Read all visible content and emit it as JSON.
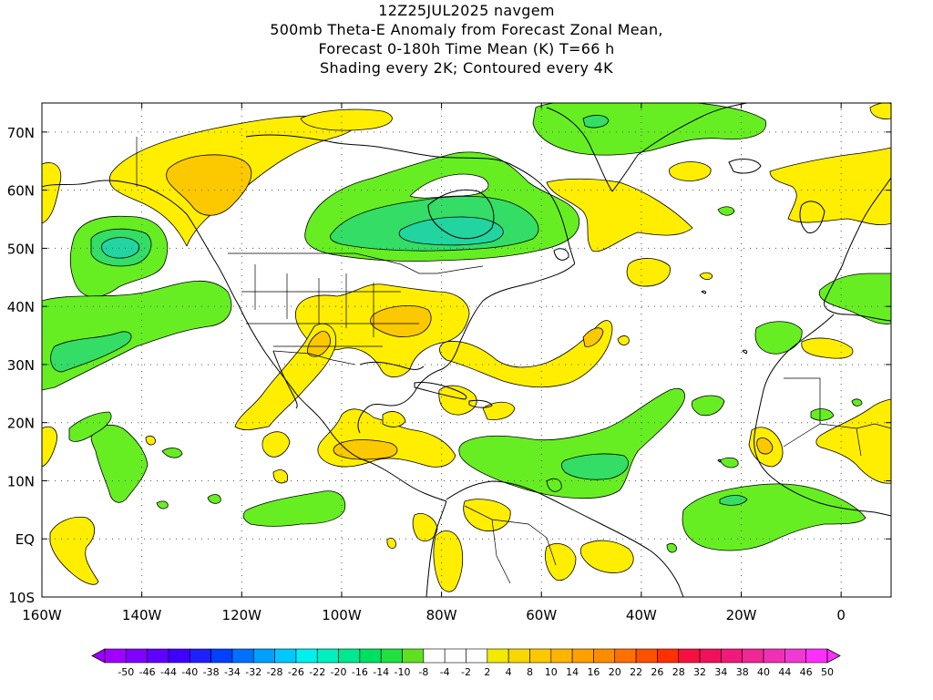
{
  "title": {
    "line1": "12Z25JUL2025 navgem",
    "line2": "500mb Theta-E Anomaly from Forecast Zonal Mean,",
    "line3": "Forecast 0-180h Time Mean (K) T=66 h",
    "line4": "Shading every 2K; Contoured every 4K"
  },
  "map": {
    "lon_range": [
      -160,
      10
    ],
    "lat_range": [
      -10,
      75
    ],
    "lon_ticks": [
      "160W",
      "140W",
      "120W",
      "100W",
      "80W",
      "60W",
      "40W",
      "20W",
      "0"
    ],
    "lat_ticks": [
      "70N",
      "60N",
      "50N",
      "40N",
      "30N",
      "20N",
      "10N",
      "EQ",
      "10S"
    ],
    "grid": "dotted"
  },
  "colorbar": {
    "labels": [
      "-50",
      "-46",
      "-44",
      "-40",
      "-38",
      "-34",
      "-32",
      "-28",
      "-26",
      "-22",
      "-20",
      "-16",
      "-14",
      "-10",
      "-8",
      "-4",
      "-2",
      "2",
      "4",
      "8",
      "10",
      "14",
      "16",
      "20",
      "22",
      "26",
      "28",
      "32",
      "34",
      "38",
      "40",
      "44",
      "46",
      "50"
    ],
    "colors": [
      "#a000ff",
      "#8000ff",
      "#6000ff",
      "#4000ff",
      "#2020ff",
      "#0040ff",
      "#0070ff",
      "#00a0ff",
      "#00c8ff",
      "#00f0f0",
      "#00f0c0",
      "#00e890",
      "#00e060",
      "#20e040",
      "#60e020",
      "#ffffff",
      "#ffffff",
      "#ffffff",
      "#f2ea00",
      "#f8d800",
      "#fcc800",
      "#ffb400",
      "#ffa000",
      "#ff8c00",
      "#ff7000",
      "#ff5000",
      "#ff3000",
      "#f51040",
      "#f0105c",
      "#f01a7a",
      "#f02896",
      "#f030b4",
      "#f038d2",
      "#ff30ff"
    ]
  },
  "colors": {
    "anomaly_pos_light": "#ffee00",
    "anomaly_pos_mid": "#fcc800",
    "anomaly_pos_strong": "#ffaa00",
    "anomaly_neg_light": "#66ee22",
    "anomaly_neg_mid": "#33dd66",
    "anomaly_neg_strong": "#22d4a0"
  }
}
